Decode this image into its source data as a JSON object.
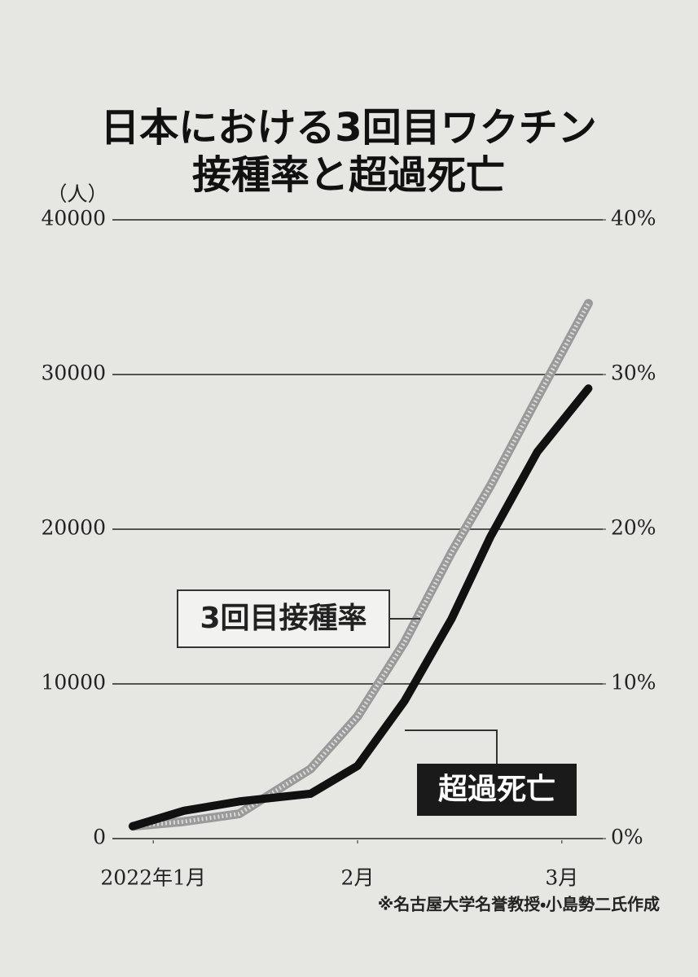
{
  "chart_data": {
    "type": "line",
    "title": [
      "日本における3回目ワクチン",
      "接種率と超過死亡"
    ],
    "y_label": "（人）",
    "source": "※名古屋大学名誉教授・小島勢二氏作成",
    "x": [
      0.9,
      1.15,
      1.42,
      1.77,
      2.0,
      2.23,
      2.46,
      2.65,
      2.88,
      3.13
    ],
    "xlim": [
      0.8,
      3.2
    ],
    "xticks": [
      {
        "value": 1,
        "label": "2022年1月"
      },
      {
        "value": 2,
        "label": "2月"
      },
      {
        "value": 3,
        "label": "3月"
      }
    ],
    "ylim": [
      0,
      40000
    ],
    "yticks": [
      0,
      10000,
      20000,
      30000,
      40000
    ],
    "y2lim": [
      0,
      40
    ],
    "y2ticks": [
      {
        "value": 0,
        "label": "0%"
      },
      {
        "value": 10,
        "label": "10%"
      },
      {
        "value": 20,
        "label": "20%"
      },
      {
        "value": 30,
        "label": "30%"
      },
      {
        "value": 40,
        "label": "40%"
      }
    ],
    "grid": true,
    "series": [
      {
        "name": "3回目接種率",
        "color": "#9a9a9a",
        "axis": "y2",
        "values": [
          0.8,
          1.1,
          1.6,
          4.5,
          7.9,
          12.7,
          18.5,
          22.8,
          28.5,
          34.6
        ]
      },
      {
        "name": "超過死亡",
        "color": "#111111",
        "values": [
          800,
          1800,
          2400,
          2900,
          4700,
          8900,
          14200,
          19500,
          25000,
          29100
        ]
      }
    ]
  }
}
